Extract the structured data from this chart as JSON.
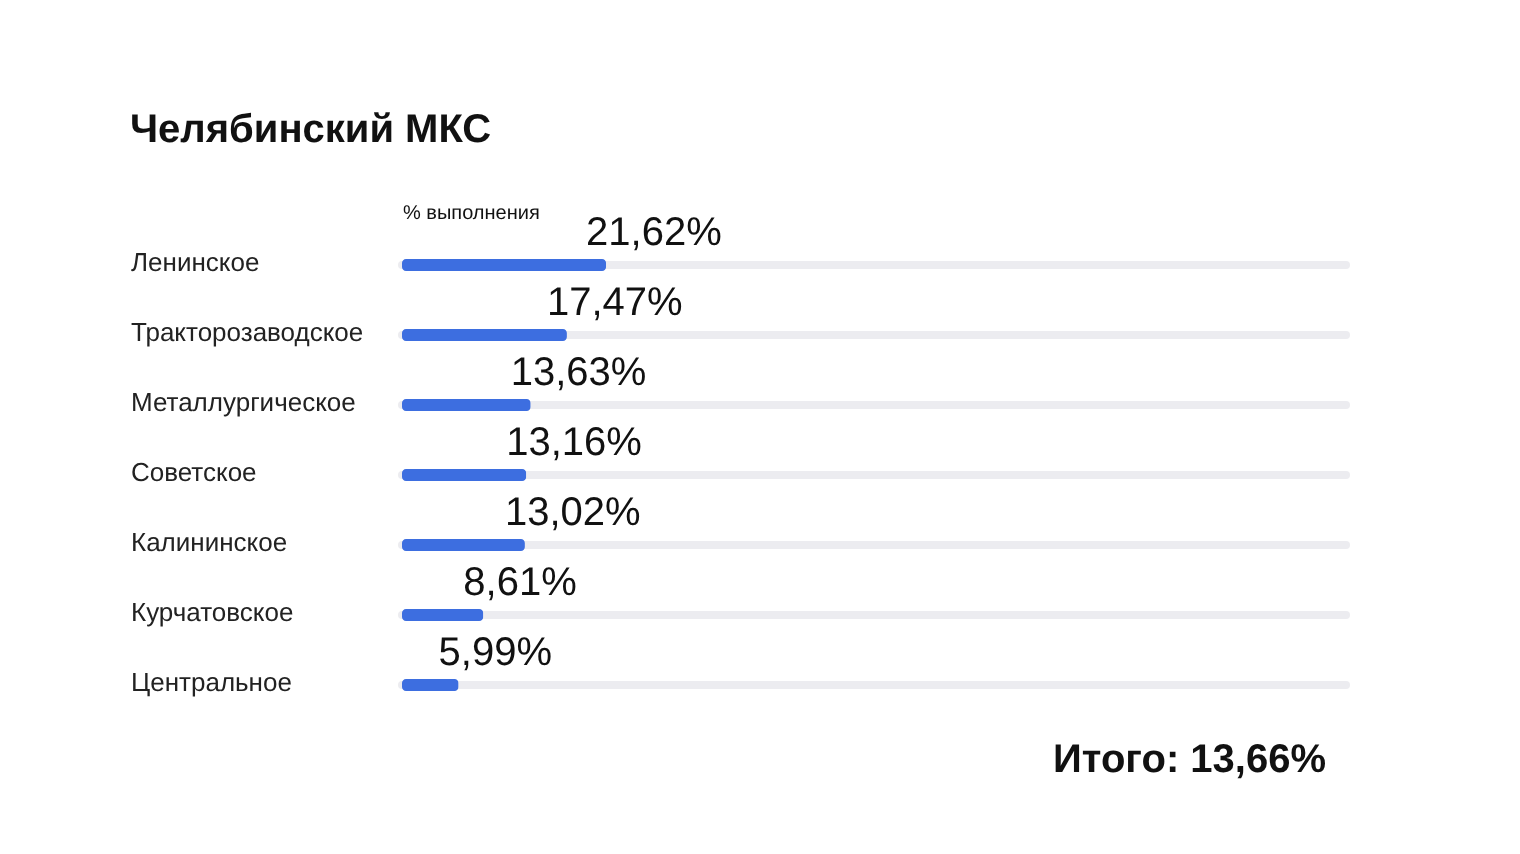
{
  "chart_data": {
    "type": "bar",
    "orientation": "horizontal",
    "title": "Челябинский МКС",
    "xlabel": "% выполнения",
    "categories": [
      "Ленинское",
      "Тракторозаводское",
      "Металлургическое",
      "Советское",
      "Калининское",
      "Курчатовское",
      "Центральное"
    ],
    "values": [
      21.62,
      17.47,
      13.63,
      13.16,
      13.02,
      8.61,
      5.99
    ],
    "value_labels": [
      "21,62%",
      "17,47%",
      "13,63%",
      "13,16%",
      "13,02%",
      "8,61%",
      "5,99%"
    ],
    "color": "#3d6ee0",
    "xlim": [
      0,
      100
    ],
    "tick_labels": "y",
    "annotations": [
      "Итого: 13,66%"
    ]
  }
}
